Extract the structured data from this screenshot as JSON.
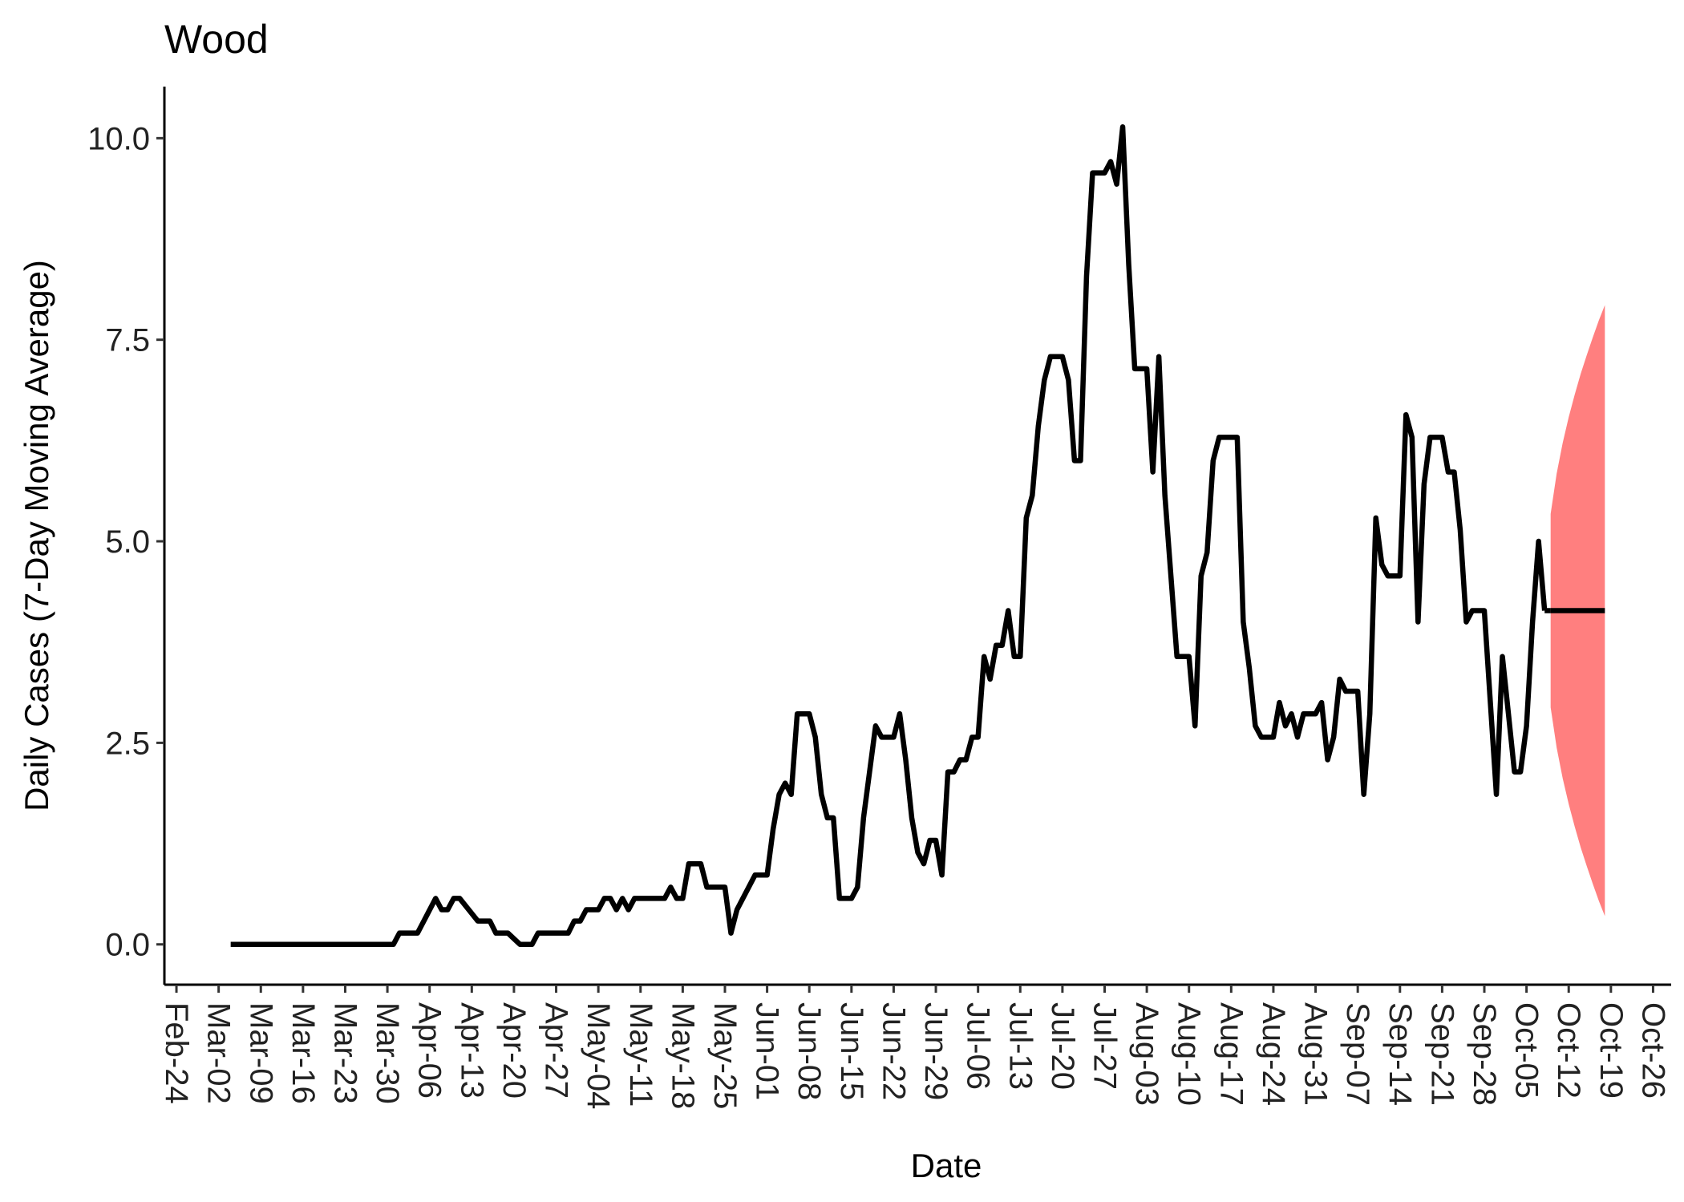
{
  "chart_data": {
    "type": "line",
    "title": "Wood",
    "x_label": "Date",
    "y_label": "Daily Cases (7-Day Moving Average)",
    "x": [
      "Mar-04",
      "Mar-31",
      "Apr-01",
      "Apr-04",
      "Apr-07",
      "Apr-08",
      "Apr-09",
      "Apr-10",
      "Apr-11",
      "Apr-14",
      "Apr-16",
      "Apr-17",
      "Apr-19",
      "Apr-21",
      "Apr-23",
      "Apr-24",
      "Apr-29",
      "Apr-30",
      "May-01",
      "May-02",
      "May-04",
      "May-05",
      "May-06",
      "May-07",
      "May-08",
      "May-09",
      "May-10",
      "May-15",
      "May-16",
      "May-17",
      "May-18",
      "May-19",
      "May-21",
      "May-22",
      "May-25",
      "May-26",
      "May-27",
      "May-30",
      "Jun-01",
      "Jun-02",
      "Jun-03",
      "Jun-04",
      "Jun-05",
      "Jun-06",
      "Jun-08",
      "Jun-09",
      "Jun-10",
      "Jun-11",
      "Jun-12",
      "Jun-13",
      "Jun-15",
      "Jun-16",
      "Jun-17",
      "Jun-19",
      "Jun-20",
      "Jun-22",
      "Jun-23",
      "Jun-24",
      "Jun-25",
      "Jun-26",
      "Jun-27",
      "Jun-28",
      "Jun-29",
      "Jun-30",
      "Jul-01",
      "Jul-02",
      "Jul-03",
      "Jul-04",
      "Jul-05",
      "Jul-06",
      "Jul-07",
      "Jul-08",
      "Jul-09",
      "Jul-10",
      "Jul-11",
      "Jul-12",
      "Jul-13",
      "Jul-14",
      "Jul-15",
      "Jul-16",
      "Jul-17",
      "Jul-18",
      "Jul-20",
      "Jul-21",
      "Jul-22",
      "Jul-23",
      "Jul-24",
      "Jul-25",
      "Jul-27",
      "Jul-28",
      "Jul-29",
      "Jul-30",
      "Jul-31",
      "Aug-01",
      "Aug-03",
      "Aug-04",
      "Aug-05",
      "Aug-06",
      "Aug-07",
      "Aug-08",
      "Aug-10",
      "Aug-11",
      "Aug-12",
      "Aug-13",
      "Aug-14",
      "Aug-15",
      "Aug-18",
      "Aug-19",
      "Aug-20",
      "Aug-21",
      "Aug-22",
      "Aug-24",
      "Aug-25",
      "Aug-26",
      "Aug-27",
      "Aug-28",
      "Aug-29",
      "Aug-31",
      "Sep-01",
      "Sep-02",
      "Sep-03",
      "Sep-04",
      "Sep-05",
      "Sep-07",
      "Sep-08",
      "Sep-09",
      "Sep-10",
      "Sep-11",
      "Sep-12",
      "Sep-14",
      "Sep-15",
      "Sep-16",
      "Sep-17",
      "Sep-18",
      "Sep-19",
      "Sep-21",
      "Sep-22",
      "Sep-23",
      "Sep-24",
      "Sep-25",
      "Sep-26",
      "Sep-28",
      "Sep-29",
      "Sep-30",
      "Oct-01",
      "Oct-02",
      "Oct-03",
      "Oct-04",
      "Oct-05",
      "Oct-06",
      "Oct-07",
      "Oct-08"
    ],
    "series": [
      {
        "color": "#000000",
        "values": [
          0,
          0,
          0.14,
          0.14,
          0.57,
          0.43,
          0.43,
          0.57,
          0.57,
          0.29,
          0.29,
          0.14,
          0.14,
          0,
          0,
          0.14,
          0.14,
          0.29,
          0.29,
          0.43,
          0.43,
          0.57,
          0.57,
          0.43,
          0.57,
          0.43,
          0.57,
          0.57,
          0.71,
          0.57,
          0.57,
          1.0,
          1.0,
          0.71,
          0.71,
          0.14,
          0.43,
          0.86,
          0.86,
          1.43,
          1.86,
          2.0,
          1.86,
          2.86,
          2.86,
          2.57,
          1.86,
          1.57,
          1.57,
          0.57,
          0.57,
          0.71,
          1.57,
          2.71,
          2.57,
          2.57,
          2.86,
          2.29,
          1.57,
          1.14,
          1.0,
          1.29,
          1.29,
          0.86,
          2.14,
          2.14,
          2.29,
          2.29,
          2.57,
          2.57,
          3.57,
          3.29,
          3.71,
          3.71,
          4.14,
          3.57,
          3.57,
          5.29,
          5.57,
          6.43,
          7.0,
          7.29,
          7.29,
          7.0,
          6.0,
          6.0,
          8.29,
          9.57,
          9.57,
          9.71,
          9.43,
          10.14,
          8.43,
          7.14,
          7.14,
          5.86,
          7.29,
          5.57,
          4.57,
          3.57,
          3.57,
          2.71,
          4.57,
          4.86,
          6.0,
          6.29,
          6.29,
          4.0,
          3.43,
          2.71,
          2.57,
          2.57,
          3.0,
          2.71,
          2.86,
          2.57,
          2.86,
          2.86,
          3.0,
          2.29,
          2.57,
          3.29,
          3.14,
          3.14,
          1.86,
          2.86,
          5.29,
          4.71,
          4.57,
          4.57,
          6.57,
          6.29,
          4.0,
          5.71,
          6.29,
          6.29,
          5.86,
          5.86,
          5.14,
          4.0,
          4.14,
          4.14,
          3.0,
          1.86,
          3.57,
          2.86,
          2.14,
          2.14,
          2.71,
          4.0,
          5.0,
          4.14
        ]
      }
    ],
    "forecast": {
      "color": "#ff7f7f",
      "line_color": "#000000",
      "x": [
        "Oct-09",
        "Oct-10",
        "Oct-11",
        "Oct-12",
        "Oct-13",
        "Oct-14",
        "Oct-15",
        "Oct-16",
        "Oct-17",
        "Oct-18"
      ],
      "values": [
        4.14,
        4.14,
        4.14,
        4.14,
        4.14,
        4.14,
        4.14,
        4.14,
        4.14,
        4.14
      ],
      "lower": [
        2.94,
        2.44,
        2.06,
        1.74,
        1.46,
        1.2,
        0.97,
        0.75,
        0.54,
        0.35
      ],
      "upper": [
        5.34,
        5.84,
        6.22,
        6.54,
        6.82,
        7.08,
        7.31,
        7.53,
        7.74,
        7.93
      ]
    },
    "xlim": [
      "Feb-22",
      "Oct-29"
    ],
    "xticks": [
      "Feb-24",
      "Mar-02",
      "Mar-09",
      "Mar-16",
      "Mar-23",
      "Mar-30",
      "Apr-06",
      "Apr-13",
      "Apr-20",
      "Apr-27",
      "May-04",
      "May-11",
      "May-18",
      "May-25",
      "Jun-01",
      "Jun-08",
      "Jun-15",
      "Jun-22",
      "Jun-29",
      "Jul-06",
      "Jul-13",
      "Jul-20",
      "Jul-27",
      "Aug-03",
      "Aug-10",
      "Aug-17",
      "Aug-24",
      "Aug-31",
      "Sep-07",
      "Sep-14",
      "Sep-21",
      "Sep-28",
      "Oct-05",
      "Oct-12",
      "Oct-19",
      "Oct-26"
    ],
    "ylim": [
      -0.5,
      10.64
    ],
    "yticks": [
      {
        "value": 0,
        "label": "0.0"
      },
      2.5,
      {
        "value": 5,
        "label": "5.0"
      },
      7.5,
      {
        "value": 10,
        "label": "10.0"
      }
    ]
  }
}
